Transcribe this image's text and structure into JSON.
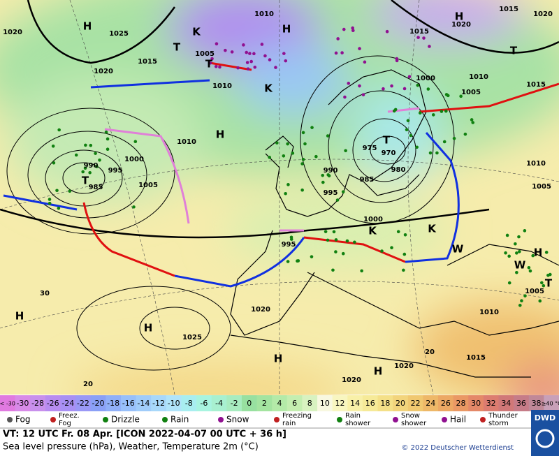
{
  "map": {
    "labels": [
      "H",
      "1010",
      "1020",
      "1025",
      "H",
      "H",
      "1020",
      "1015",
      "1020",
      "1015",
      "1015",
      "T",
      "1005",
      "T",
      "1010",
      "1020",
      "T",
      "K",
      "K",
      "1000",
      "1010",
      "1005",
      "1015",
      "H",
      "1010",
      "1000",
      "990",
      "995",
      "985",
      "T",
      "1005",
      "990",
      "975",
      "970",
      "980",
      "985",
      "T",
      "995",
      "1010",
      "1005",
      "1000",
      "K",
      "995",
      "W",
      "W",
      "H",
      "T",
      "1005",
      "1010",
      "1020",
      "1025",
      "H",
      "H",
      "H",
      "1015",
      "1020",
      "H",
      "1020",
      "30",
      "20",
      "20",
      "K"
    ]
  },
  "scale": [
    {
      "label": "< -30",
      "color": "#e07ae0"
    },
    {
      "label": "-30",
      "color": "#d88ae8"
    },
    {
      "label": "-28",
      "color": "#c890ec"
    },
    {
      "label": "-26",
      "color": "#b88cf0"
    },
    {
      "label": "-24",
      "color": "#a890f4"
    },
    {
      "label": "-22",
      "color": "#9a98f6"
    },
    {
      "label": "-20",
      "color": "#8aa0f6"
    },
    {
      "label": "-18",
      "color": "#90b0f8"
    },
    {
      "label": "-16",
      "color": "#98c0fa"
    },
    {
      "label": "-14",
      "color": "#a0ccfa"
    },
    {
      "label": "-12",
      "color": "#a8d8fa"
    },
    {
      "label": "-10",
      "color": "#b0e4fa"
    },
    {
      "label": "-8",
      "color": "#a8eef0"
    },
    {
      "label": "-6",
      "color": "#a8f4e0"
    },
    {
      "label": "-4",
      "color": "#a8f0d0"
    },
    {
      "label": "-2",
      "color": "#a8ecc0"
    },
    {
      "label": "0",
      "color": "#98e0a0"
    },
    {
      "label": "2",
      "color": "#a4e4a0"
    },
    {
      "label": "4",
      "color": "#b4eaa8"
    },
    {
      "label": "6",
      "color": "#c4eeb0"
    },
    {
      "label": "8",
      "color": "#d8f2c0"
    },
    {
      "label": "10",
      "color": "#f8f8e0"
    },
    {
      "label": "12",
      "color": "#f8f6c0"
    },
    {
      "label": "14",
      "color": "#f8f0a8"
    },
    {
      "label": "16",
      "color": "#f6ea98"
    },
    {
      "label": "18",
      "color": "#f4e088"
    },
    {
      "label": "20",
      "color": "#f2d47c"
    },
    {
      "label": "22",
      "color": "#f0c870"
    },
    {
      "label": "24",
      "color": "#eeb868"
    },
    {
      "label": "26",
      "color": "#eca864"
    },
    {
      "label": "28",
      "color": "#ea9864"
    },
    {
      "label": "30",
      "color": "#e48868"
    },
    {
      "label": "32",
      "color": "#dc7c70"
    },
    {
      "label": "34",
      "color": "#d07878"
    },
    {
      "label": "36",
      "color": "#c67c88"
    },
    {
      "label": "38",
      "color": "#c08898"
    },
    {
      "label": "≥40 °C",
      "color": "#c8a0b8"
    }
  ],
  "legend": [
    "Fog",
    "Freez. Fog",
    "Drizzle",
    "Rain",
    "Snow",
    "Freezing rain",
    "Rain shower",
    "Snow shower",
    "Hail",
    "Thunder storm"
  ],
  "footer": {
    "valid": "VT: 12 UTC Fr.  08 Apr. [ICON 2022-04-07  00 UTC + 36 h]",
    "description": "Sea level pressure (hPa), Weather, Temperature 2m (°C)",
    "copyright": "© 2022 Deutscher Wetterdienst",
    "logo": "DWD"
  }
}
